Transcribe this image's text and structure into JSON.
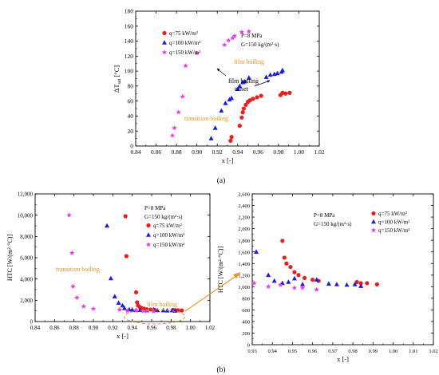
{
  "chart_data": [
    {
      "id": "a",
      "type": "scatter",
      "panel_label": "(a)",
      "xlabel": "x [-]",
      "ylabel_main": "ΔT",
      "ylabel_sub": "sat",
      "ylabel_unit": "[°C]",
      "xlim": [
        0.84,
        1.02
      ],
      "ylim": [
        0,
        180
      ],
      "xticks": [
        "0.84",
        "0.86",
        "0.88",
        "0.90",
        "0.92",
        "0.94",
        "0.96",
        "0.98",
        "1.00",
        "1.02"
      ],
      "yticks": [
        "0",
        "20",
        "40",
        "60",
        "80",
        "100",
        "120",
        "140",
        "160",
        "180"
      ],
      "legend": [
        "q=75 kW/m²",
        "q=100 kW/m²",
        "q=150 kW/m²"
      ],
      "conditions": [
        "P=8 MPa",
        "G=150 kg/(m²·s)"
      ],
      "annotations": {
        "film_boiling": "film boiling",
        "onset_1": "film boiling",
        "onset_2": "onset",
        "transition": "transition boiling"
      },
      "series": [
        {
          "name": "q=75 kW/m²",
          "marker": "circle",
          "color": "#ee1c1c",
          "points": [
            [
              0.933,
              7
            ],
            [
              0.934,
              12
            ],
            [
              0.942,
              27
            ],
            [
              0.944,
              38
            ],
            [
              0.945,
              45
            ],
            [
              0.946,
              50
            ],
            [
              0.948,
              55
            ],
            [
              0.95,
              59
            ],
            [
              0.952,
              61
            ],
            [
              0.955,
              63
            ],
            [
              0.959,
              65
            ],
            [
              0.963,
              67
            ],
            [
              0.982,
              68
            ],
            [
              0.984,
              71
            ],
            [
              0.987,
              70
            ],
            [
              0.991,
              71
            ]
          ]
        },
        {
          "name": "q=100 kW/m²",
          "marker": "triangle",
          "color": "#1a1aef",
          "points": [
            [
              0.914,
              10
            ],
            [
              0.918,
              24
            ],
            [
              0.924,
              47
            ],
            [
              0.928,
              57
            ],
            [
              0.932,
              62
            ],
            [
              0.934,
              64
            ],
            [
              0.94,
              76
            ],
            [
              0.942,
              80
            ],
            [
              0.945,
              85
            ],
            [
              0.947,
              86
            ],
            [
              0.951,
              91
            ],
            [
              0.968,
              92
            ],
            [
              0.972,
              95
            ],
            [
              0.976,
              96
            ],
            [
              0.979,
              97
            ],
            [
              0.983,
              99
            ],
            [
              0.984,
              101
            ]
          ]
        },
        {
          "name": "q=150 kW/m²",
          "marker": "star",
          "color": "#ee33ee",
          "points": [
            [
              0.876,
              14
            ],
            [
              0.878,
              24
            ],
            [
              0.882,
              45
            ],
            [
              0.886,
              66
            ],
            [
              0.889,
              107
            ],
            [
              0.9,
              124
            ],
            [
              0.927,
              135
            ],
            [
              0.931,
              141
            ],
            [
              0.935,
              144
            ],
            [
              0.937,
              147
            ],
            [
              0.944,
              152
            ],
            [
              0.951,
              153
            ]
          ]
        }
      ]
    },
    {
      "id": "b_left",
      "type": "scatter",
      "xlabel": "x [-]",
      "ylabel": "HTC [W/(m²·°C)]",
      "xlim": [
        0.84,
        1.02
      ],
      "ylim": [
        0,
        12000
      ],
      "xticks": [
        "0.84",
        "0.86",
        "0.88",
        "0.90",
        "0.92",
        "0.94",
        "0.96",
        "0.98",
        "1.00",
        "1.02"
      ],
      "yticks": [
        "0",
        "2,000",
        "4,000",
        "6,000",
        "8,000",
        "10,000",
        "12,000"
      ],
      "legend": [
        "q=75 kW/m²",
        "q=100 kW/m²",
        "q=150 kW/m²"
      ],
      "conditions": [
        "P=8 MPa",
        "G=150 kg/(m²·s)"
      ],
      "annotations": {
        "transition": "transition boiling",
        "film_boiling": "film boiling"
      },
      "series": [
        {
          "name": "q=75 kW/m²",
          "marker": "circle",
          "color": "#ee1c1c",
          "points": [
            [
              0.933,
              9900
            ],
            [
              0.934,
              6150
            ],
            [
              0.944,
              2750
            ],
            [
              0.945,
              1800
            ],
            [
              0.946,
              1500
            ],
            [
              0.948,
              1350
            ],
            [
              0.95,
              1250
            ],
            [
              0.952,
              1200
            ],
            [
              0.955,
              1150
            ],
            [
              0.959,
              1130
            ],
            [
              0.963,
              1110
            ],
            [
              0.982,
              1080
            ],
            [
              0.984,
              1060
            ],
            [
              0.987,
              1060
            ],
            [
              0.991,
              1040
            ]
          ]
        },
        {
          "name": "q=100 kW/m²",
          "marker": "triangle",
          "color": "#1a1aef",
          "points": [
            [
              0.914,
              9000
            ],
            [
              0.918,
              4050
            ],
            [
              0.922,
              2350
            ],
            [
              0.926,
              1750
            ],
            [
              0.93,
              1500
            ],
            [
              0.932,
              1250
            ],
            [
              0.937,
              1130
            ],
            [
              0.94,
              1100
            ],
            [
              0.944,
              1060
            ],
            [
              0.948,
              1080
            ],
            [
              0.955,
              1040
            ],
            [
              0.962,
              1120
            ],
            [
              0.966,
              1050
            ],
            [
              0.972,
              1040
            ],
            [
              0.976,
              1030
            ],
            [
              0.981,
              1040
            ],
            [
              0.984,
              1010
            ]
          ]
        },
        {
          "name": "q=150 kW/m²",
          "marker": "star",
          "color": "#ee33ee",
          "points": [
            [
              0.875,
              10000
            ],
            [
              0.878,
              6450
            ],
            [
              0.879,
              3300
            ],
            [
              0.883,
              2250
            ],
            [
              0.89,
              1420
            ],
            [
              0.9,
              1200
            ],
            [
              0.927,
              1120
            ],
            [
              0.935,
              1000
            ],
            [
              0.944,
              1070
            ],
            [
              0.951,
              980
            ],
            [
              0.955,
              980
            ],
            [
              0.962,
              950
            ]
          ]
        }
      ]
    },
    {
      "id": "b_right",
      "type": "scatter",
      "panel_label": "(b)",
      "xlabel": "x [-]",
      "ylabel": "HTC [W/(m²·°C)]",
      "xlim": [
        0.93,
        1.02
      ],
      "ylim": [
        0,
        2600
      ],
      "xticks": [
        "0.93",
        "0.94",
        "0.95",
        "0.96",
        "0.97",
        "0.98",
        "0.99",
        "1.00",
        "1.01",
        "1.02"
      ],
      "yticks": [
        "0",
        "200",
        "400",
        "600",
        "800",
        "1,000",
        "1,200",
        "1,400",
        "1,600",
        "1,800",
        "2,000",
        "2,200",
        "2,400",
        "2,600"
      ],
      "legend": [
        "q=75 kW/m²",
        "q=100 kW/m²",
        "q=150 kW/m²"
      ],
      "conditions": [
        "P=8 MPa",
        "G=150 kg/(m²·s)"
      ],
      "series": [
        {
          "name": "q=75 kW/m²",
          "marker": "circle",
          "color": "#ee1c1c",
          "points": [
            [
              0.945,
              1790
            ],
            [
              0.946,
              1500
            ],
            [
              0.947,
              1400
            ],
            [
              0.949,
              1340
            ],
            [
              0.951,
              1250
            ],
            [
              0.953,
              1200
            ],
            [
              0.956,
              1150
            ],
            [
              0.96,
              1120
            ],
            [
              0.963,
              1100
            ],
            [
              0.982,
              1080
            ],
            [
              0.984,
              1060
            ],
            [
              0.987,
              1060
            ],
            [
              0.992,
              1040
            ]
          ]
        },
        {
          "name": "q=100 kW/m²",
          "marker": "triangle",
          "color": "#1a1aef",
          "points": [
            [
              0.932,
              1600
            ],
            [
              0.938,
              1200
            ],
            [
              0.941,
              1100
            ],
            [
              0.945,
              1060
            ],
            [
              0.948,
              1080
            ],
            [
              0.951,
              1140
            ],
            [
              0.955,
              1040
            ],
            [
              0.962,
              1120
            ],
            [
              0.968,
              1050
            ],
            [
              0.972,
              1040
            ],
            [
              0.977,
              1030
            ],
            [
              0.981,
              1040
            ],
            [
              0.984,
              1010
            ]
          ]
        },
        {
          "name": "q=150 kW/m²",
          "marker": "star",
          "color": "#ee33ee",
          "points": [
            [
              0.931,
              1060
            ],
            [
              0.938,
              1000
            ],
            [
              0.944,
              1030
            ],
            [
              0.951,
              980
            ],
            [
              0.955,
              980
            ],
            [
              0.962,
              950
            ]
          ]
        }
      ]
    }
  ]
}
